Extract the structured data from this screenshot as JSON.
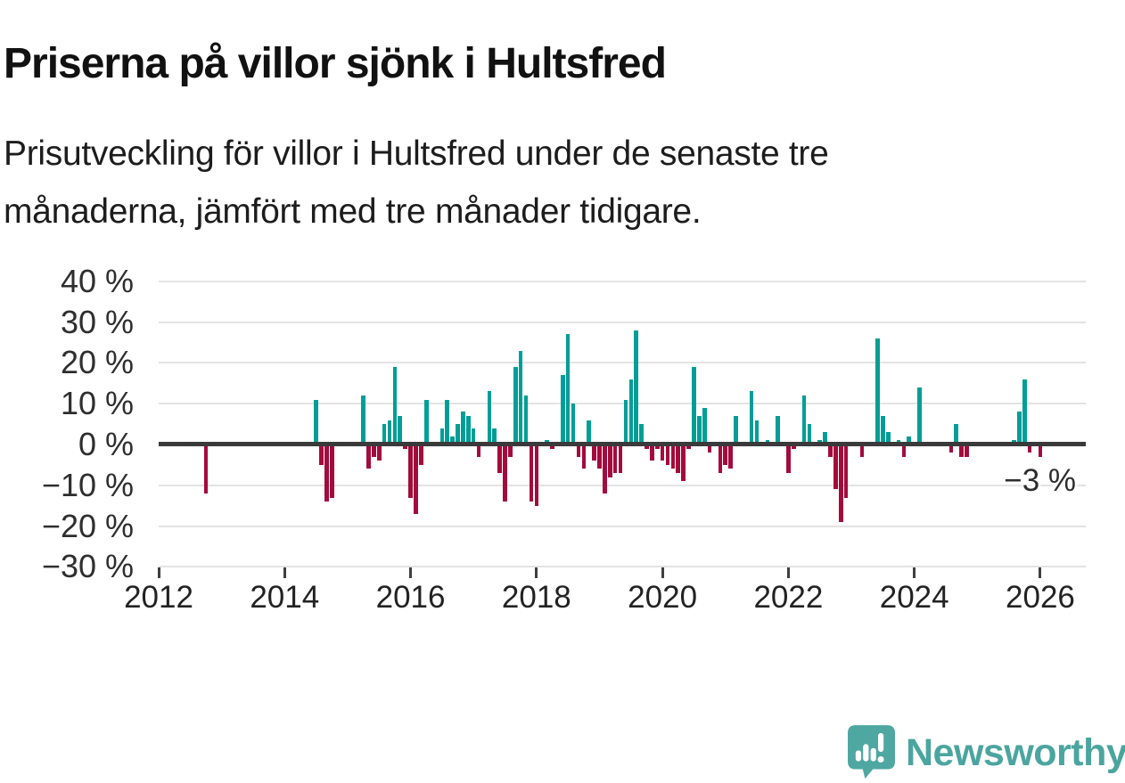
{
  "header": {
    "title": "Priserna på villor sjönk i Hultsfred",
    "subtitle_line1": "Prisutveckling för villor i Hultsfred under de senaste tre",
    "subtitle_line2": "månaderna, jämfört med tre månader tidigare."
  },
  "chart_data": {
    "type": "bar",
    "title": "Priserna på villor sjönk i Hultsfred",
    "subtitle": "Prisutveckling för villor i Hultsfred under de senaste tre månaderna, jämfört med tre månader tidigare.",
    "xlabel": "",
    "ylabel": "",
    "unit": "%",
    "ylim": [
      -30,
      40
    ],
    "x_range": [
      2012,
      2026.7
    ],
    "grid": true,
    "legend": "none",
    "positive_color": "#009E96",
    "negative_color": "#A30B3D",
    "zero_line_color": "#3A3A3A",
    "gridline_color": "#E3E3E3",
    "y_ticks": [
      {
        "value": 40,
        "label": "40 %"
      },
      {
        "value": 30,
        "label": "30 %"
      },
      {
        "value": 20,
        "label": "20 %"
      },
      {
        "value": 10,
        "label": "10 %"
      },
      {
        "value": 0,
        "label": "0 %"
      },
      {
        "value": -10,
        "label": "−10 %"
      },
      {
        "value": -20,
        "label": "−20 %"
      },
      {
        "value": -30,
        "label": "−30 %"
      }
    ],
    "x_ticks": [
      {
        "value": 2012,
        "label": "2012"
      },
      {
        "value": 2014,
        "label": "2014"
      },
      {
        "value": 2016,
        "label": "2016"
      },
      {
        "value": 2018,
        "label": "2018"
      },
      {
        "value": 2020,
        "label": "2020"
      },
      {
        "value": 2022,
        "label": "2022"
      },
      {
        "value": 2024,
        "label": "2024"
      },
      {
        "value": 2026,
        "label": "2026"
      }
    ],
    "annotation": {
      "label": "−3 %",
      "value": -3,
      "date": "2026-01"
    },
    "series": [
      {
        "date": "2012-10",
        "value": -12
      },
      {
        "date": "2014-07",
        "value": 11
      },
      {
        "date": "2014-08",
        "value": -5
      },
      {
        "date": "2014-09",
        "value": -14
      },
      {
        "date": "2014-10",
        "value": -13
      },
      {
        "date": "2015-04",
        "value": 12
      },
      {
        "date": "2015-05",
        "value": -6
      },
      {
        "date": "2015-06",
        "value": -3
      },
      {
        "date": "2015-07",
        "value": -4
      },
      {
        "date": "2015-08",
        "value": 5
      },
      {
        "date": "2015-09",
        "value": 6
      },
      {
        "date": "2015-10",
        "value": 19
      },
      {
        "date": "2015-11",
        "value": 7
      },
      {
        "date": "2015-12",
        "value": -1
      },
      {
        "date": "2016-01",
        "value": -13
      },
      {
        "date": "2016-02",
        "value": -17
      },
      {
        "date": "2016-03",
        "value": -5
      },
      {
        "date": "2016-04",
        "value": 11
      },
      {
        "date": "2016-07",
        "value": 4
      },
      {
        "date": "2016-08",
        "value": 11
      },
      {
        "date": "2016-09",
        "value": 2
      },
      {
        "date": "2016-10",
        "value": 5
      },
      {
        "date": "2016-11",
        "value": 8
      },
      {
        "date": "2016-12",
        "value": 7
      },
      {
        "date": "2017-01",
        "value": 4
      },
      {
        "date": "2017-02",
        "value": -3
      },
      {
        "date": "2017-04",
        "value": 13
      },
      {
        "date": "2017-05",
        "value": 4
      },
      {
        "date": "2017-06",
        "value": -7
      },
      {
        "date": "2017-07",
        "value": -14
      },
      {
        "date": "2017-08",
        "value": -3
      },
      {
        "date": "2017-09",
        "value": 19
      },
      {
        "date": "2017-10",
        "value": 23
      },
      {
        "date": "2017-11",
        "value": 12
      },
      {
        "date": "2017-12",
        "value": -14
      },
      {
        "date": "2018-01",
        "value": -15
      },
      {
        "date": "2018-03",
        "value": 1
      },
      {
        "date": "2018-04",
        "value": -1
      },
      {
        "date": "2018-06",
        "value": 17
      },
      {
        "date": "2018-07",
        "value": 27
      },
      {
        "date": "2018-08",
        "value": 10
      },
      {
        "date": "2018-09",
        "value": -3
      },
      {
        "date": "2018-10",
        "value": -6
      },
      {
        "date": "2018-11",
        "value": 6
      },
      {
        "date": "2018-12",
        "value": -4
      },
      {
        "date": "2019-01",
        "value": -6
      },
      {
        "date": "2019-02",
        "value": -12
      },
      {
        "date": "2019-03",
        "value": -8
      },
      {
        "date": "2019-04",
        "value": -7
      },
      {
        "date": "2019-05",
        "value": -7
      },
      {
        "date": "2019-06",
        "value": 11
      },
      {
        "date": "2019-07",
        "value": 16
      },
      {
        "date": "2019-08",
        "value": 28
      },
      {
        "date": "2019-09",
        "value": 5
      },
      {
        "date": "2019-10",
        "value": -1
      },
      {
        "date": "2019-11",
        "value": -4
      },
      {
        "date": "2019-12",
        "value": -1
      },
      {
        "date": "2020-01",
        "value": -4
      },
      {
        "date": "2020-02",
        "value": -5
      },
      {
        "date": "2020-03",
        "value": -6
      },
      {
        "date": "2020-04",
        "value": -7
      },
      {
        "date": "2020-05",
        "value": -9
      },
      {
        "date": "2020-06",
        "value": -1
      },
      {
        "date": "2020-07",
        "value": 19
      },
      {
        "date": "2020-08",
        "value": 7
      },
      {
        "date": "2020-09",
        "value": 9
      },
      {
        "date": "2020-10",
        "value": -2
      },
      {
        "date": "2020-12",
        "value": -7
      },
      {
        "date": "2021-01",
        "value": -5
      },
      {
        "date": "2021-02",
        "value": -6
      },
      {
        "date": "2021-03",
        "value": 7
      },
      {
        "date": "2021-06",
        "value": 13
      },
      {
        "date": "2021-07",
        "value": 6
      },
      {
        "date": "2021-09",
        "value": 1
      },
      {
        "date": "2021-11",
        "value": 7
      },
      {
        "date": "2022-01",
        "value": -7
      },
      {
        "date": "2022-02",
        "value": -1
      },
      {
        "date": "2022-04",
        "value": 12
      },
      {
        "date": "2022-05",
        "value": 5
      },
      {
        "date": "2022-07",
        "value": 1
      },
      {
        "date": "2022-08",
        "value": 3
      },
      {
        "date": "2022-09",
        "value": -3
      },
      {
        "date": "2022-10",
        "value": -11
      },
      {
        "date": "2022-11",
        "value": -19
      },
      {
        "date": "2022-12",
        "value": -13
      },
      {
        "date": "2023-03",
        "value": -3
      },
      {
        "date": "2023-06",
        "value": 26
      },
      {
        "date": "2023-07",
        "value": 7
      },
      {
        "date": "2023-08",
        "value": 3
      },
      {
        "date": "2023-10",
        "value": 1
      },
      {
        "date": "2023-11",
        "value": -3
      },
      {
        "date": "2023-12",
        "value": 2
      },
      {
        "date": "2024-02",
        "value": 14
      },
      {
        "date": "2024-08",
        "value": -2
      },
      {
        "date": "2024-09",
        "value": 5
      },
      {
        "date": "2024-10",
        "value": -3
      },
      {
        "date": "2024-11",
        "value": -3
      },
      {
        "date": "2025-08",
        "value": 1
      },
      {
        "date": "2025-09",
        "value": 8
      },
      {
        "date": "2025-10",
        "value": 16
      },
      {
        "date": "2025-11",
        "value": -2
      },
      {
        "date": "2026-01",
        "value": -3
      }
    ]
  },
  "footer": {
    "logo_text": "Newsworthy",
    "logo_color": "#4BA59F"
  }
}
